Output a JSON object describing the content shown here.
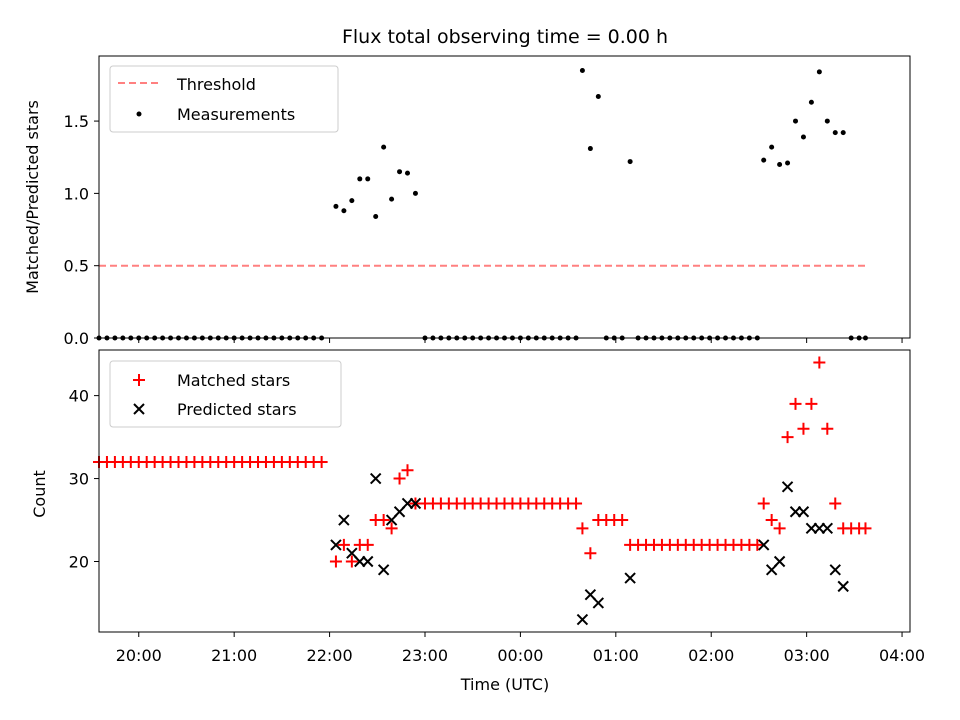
{
  "chart_data": [
    {
      "type": "scatter",
      "title": "Flux total observing time = 0.00 h",
      "xlabel": "",
      "ylabel": "Matched/Predicted stars",
      "ylim": [
        0,
        1.95
      ],
      "yticks": [
        "0.0",
        "0.5",
        "1.0",
        "1.5"
      ],
      "x_is_time": true,
      "x_start": "19:35",
      "x_end": "04:05",
      "x_tick_labels_shown": false,
      "legend_position": "top-left",
      "threshold": {
        "name": "Threshold",
        "value": 0.5,
        "color": "#ff8080",
        "style": "dashed",
        "from": "19:35",
        "to": "03:37"
      },
      "series": [
        {
          "name": "Measurements",
          "marker": "dot",
          "color": "#000000",
          "points": [
            [
              "19:35",
              0
            ],
            [
              "19:40",
              0
            ],
            [
              "19:45",
              0
            ],
            [
              "19:50",
              0
            ],
            [
              "19:55",
              0
            ],
            [
              "20:00",
              0
            ],
            [
              "20:05",
              0
            ],
            [
              "20:10",
              0
            ],
            [
              "20:15",
              0
            ],
            [
              "20:20",
              0
            ],
            [
              "20:25",
              0
            ],
            [
              "20:30",
              0
            ],
            [
              "20:35",
              0
            ],
            [
              "20:40",
              0
            ],
            [
              "20:45",
              0
            ],
            [
              "20:50",
              0
            ],
            [
              "20:55",
              0
            ],
            [
              "21:00",
              0
            ],
            [
              "21:05",
              0
            ],
            [
              "21:10",
              0
            ],
            [
              "21:15",
              0
            ],
            [
              "21:20",
              0
            ],
            [
              "21:25",
              0
            ],
            [
              "21:30",
              0
            ],
            [
              "21:35",
              0
            ],
            [
              "21:40",
              0
            ],
            [
              "21:45",
              0
            ],
            [
              "21:50",
              0
            ],
            [
              "21:55",
              0
            ],
            [
              "22:04",
              0.91
            ],
            [
              "22:09",
              0.88
            ],
            [
              "22:14",
              0.95
            ],
            [
              "22:19",
              1.1
            ],
            [
              "22:24",
              1.1
            ],
            [
              "22:29",
              0.84
            ],
            [
              "22:34",
              1.32
            ],
            [
              "22:39",
              0.96
            ],
            [
              "22:44",
              1.15
            ],
            [
              "22:49",
              1.14
            ],
            [
              "22:54",
              1.0
            ],
            [
              "23:00",
              0
            ],
            [
              "23:05",
              0
            ],
            [
              "23:10",
              0
            ],
            [
              "23:15",
              0
            ],
            [
              "23:20",
              0
            ],
            [
              "23:25",
              0
            ],
            [
              "23:30",
              0
            ],
            [
              "23:35",
              0
            ],
            [
              "23:40",
              0
            ],
            [
              "23:45",
              0
            ],
            [
              "23:50",
              0
            ],
            [
              "23:55",
              0
            ],
            [
              "00:00",
              0
            ],
            [
              "00:05",
              0
            ],
            [
              "00:10",
              0
            ],
            [
              "00:15",
              0
            ],
            [
              "00:20",
              0
            ],
            [
              "00:25",
              0
            ],
            [
              "00:30",
              0
            ],
            [
              "00:35",
              0
            ],
            [
              "00:39",
              1.85
            ],
            [
              "00:44",
              1.31
            ],
            [
              "00:49",
              1.67
            ],
            [
              "00:54",
              0
            ],
            [
              "00:59",
              0
            ],
            [
              "01:04",
              0
            ],
            [
              "01:09",
              1.22
            ],
            [
              "01:14",
              0
            ],
            [
              "01:19",
              0
            ],
            [
              "01:24",
              0
            ],
            [
              "01:29",
              0
            ],
            [
              "01:34",
              0
            ],
            [
              "01:39",
              0
            ],
            [
              "01:44",
              0
            ],
            [
              "01:49",
              0
            ],
            [
              "01:54",
              0
            ],
            [
              "01:59",
              0
            ],
            [
              "02:04",
              0
            ],
            [
              "02:09",
              0
            ],
            [
              "02:14",
              0
            ],
            [
              "02:19",
              0
            ],
            [
              "02:24",
              0
            ],
            [
              "02:29",
              0
            ],
            [
              "02:33",
              1.23
            ],
            [
              "02:38",
              1.32
            ],
            [
              "02:43",
              1.2
            ],
            [
              "02:48",
              1.21
            ],
            [
              "02:53",
              1.5
            ],
            [
              "02:58",
              1.39
            ],
            [
              "03:03",
              1.63
            ],
            [
              "03:08",
              1.84
            ],
            [
              "03:13",
              1.5
            ],
            [
              "03:18",
              1.42
            ],
            [
              "03:23",
              1.42
            ],
            [
              "03:28",
              0
            ],
            [
              "03:33",
              0
            ],
            [
              "03:37",
              0
            ]
          ]
        }
      ]
    },
    {
      "type": "scatter",
      "title": "",
      "xlabel": "Time (UTC)",
      "ylabel": "Count",
      "ylim": [
        11.5,
        45.5
      ],
      "yticks": [
        "20",
        "30",
        "40"
      ],
      "x_is_time": true,
      "x_start": "19:35",
      "x_end": "04:05",
      "xticks": [
        "20:00",
        "21:00",
        "22:00",
        "23:00",
        "00:00",
        "01:00",
        "02:00",
        "03:00",
        "04:00"
      ],
      "legend_position": "top-left",
      "series": [
        {
          "name": "Matched stars",
          "marker": "plus",
          "color": "#ff0000",
          "points": [
            [
              "19:35",
              32
            ],
            [
              "19:40",
              32
            ],
            [
              "19:45",
              32
            ],
            [
              "19:50",
              32
            ],
            [
              "19:55",
              32
            ],
            [
              "20:00",
              32
            ],
            [
              "20:05",
              32
            ],
            [
              "20:10",
              32
            ],
            [
              "20:15",
              32
            ],
            [
              "20:20",
              32
            ],
            [
              "20:25",
              32
            ],
            [
              "20:30",
              32
            ],
            [
              "20:35",
              32
            ],
            [
              "20:40",
              32
            ],
            [
              "20:45",
              32
            ],
            [
              "20:50",
              32
            ],
            [
              "20:55",
              32
            ],
            [
              "21:00",
              32
            ],
            [
              "21:05",
              32
            ],
            [
              "21:10",
              32
            ],
            [
              "21:15",
              32
            ],
            [
              "21:20",
              32
            ],
            [
              "21:25",
              32
            ],
            [
              "21:30",
              32
            ],
            [
              "21:35",
              32
            ],
            [
              "21:40",
              32
            ],
            [
              "21:45",
              32
            ],
            [
              "21:50",
              32
            ],
            [
              "21:55",
              32
            ],
            [
              "22:04",
              20
            ],
            [
              "22:09",
              22
            ],
            [
              "22:14",
              20
            ],
            [
              "22:19",
              22
            ],
            [
              "22:24",
              22
            ],
            [
              "22:29",
              25
            ],
            [
              "22:34",
              25
            ],
            [
              "22:39",
              24
            ],
            [
              "22:44",
              30
            ],
            [
              "22:49",
              31
            ],
            [
              "22:54",
              27
            ],
            [
              "23:00",
              27
            ],
            [
              "23:05",
              27
            ],
            [
              "23:10",
              27
            ],
            [
              "23:15",
              27
            ],
            [
              "23:20",
              27
            ],
            [
              "23:25",
              27
            ],
            [
              "23:30",
              27
            ],
            [
              "23:35",
              27
            ],
            [
              "23:40",
              27
            ],
            [
              "23:45",
              27
            ],
            [
              "23:50",
              27
            ],
            [
              "23:55",
              27
            ],
            [
              "00:00",
              27
            ],
            [
              "00:05",
              27
            ],
            [
              "00:10",
              27
            ],
            [
              "00:15",
              27
            ],
            [
              "00:20",
              27
            ],
            [
              "00:25",
              27
            ],
            [
              "00:30",
              27
            ],
            [
              "00:35",
              27
            ],
            [
              "00:39",
              24
            ],
            [
              "00:44",
              21
            ],
            [
              "00:49",
              25
            ],
            [
              "00:54",
              25
            ],
            [
              "00:59",
              25
            ],
            [
              "01:04",
              25
            ],
            [
              "01:09",
              22
            ],
            [
              "01:14",
              22
            ],
            [
              "01:19",
              22
            ],
            [
              "01:24",
              22
            ],
            [
              "01:29",
              22
            ],
            [
              "01:34",
              22
            ],
            [
              "01:39",
              22
            ],
            [
              "01:44",
              22
            ],
            [
              "01:49",
              22
            ],
            [
              "01:54",
              22
            ],
            [
              "01:59",
              22
            ],
            [
              "02:04",
              22
            ],
            [
              "02:09",
              22
            ],
            [
              "02:14",
              22
            ],
            [
              "02:19",
              22
            ],
            [
              "02:24",
              22
            ],
            [
              "02:29",
              22
            ],
            [
              "02:33",
              27
            ],
            [
              "02:38",
              25
            ],
            [
              "02:43",
              24
            ],
            [
              "02:48",
              35
            ],
            [
              "02:53",
              39
            ],
            [
              "02:58",
              36
            ],
            [
              "03:03",
              39
            ],
            [
              "03:08",
              44
            ],
            [
              "03:13",
              36
            ],
            [
              "03:18",
              27
            ],
            [
              "03:23",
              24
            ],
            [
              "03:28",
              24
            ],
            [
              "03:33",
              24
            ],
            [
              "03:37",
              24
            ]
          ]
        },
        {
          "name": "Predicted stars",
          "marker": "x",
          "color": "#000000",
          "points": [
            [
              "22:04",
              22
            ],
            [
              "22:09",
              25
            ],
            [
              "22:14",
              21
            ],
            [
              "22:19",
              20
            ],
            [
              "22:24",
              20
            ],
            [
              "22:29",
              30
            ],
            [
              "22:34",
              19
            ],
            [
              "22:39",
              25
            ],
            [
              "22:44",
              26
            ],
            [
              "22:49",
              27
            ],
            [
              "22:54",
              27
            ],
            [
              "00:39",
              13
            ],
            [
              "00:44",
              16
            ],
            [
              "00:49",
              15
            ],
            [
              "01:09",
              18
            ],
            [
              "02:33",
              22
            ],
            [
              "02:38",
              19
            ],
            [
              "02:43",
              20
            ],
            [
              "02:48",
              29
            ],
            [
              "02:53",
              26
            ],
            [
              "02:58",
              26
            ],
            [
              "03:03",
              24
            ],
            [
              "03:08",
              24
            ],
            [
              "03:13",
              24
            ],
            [
              "03:18",
              19
            ],
            [
              "03:23",
              17
            ]
          ]
        }
      ]
    }
  ]
}
